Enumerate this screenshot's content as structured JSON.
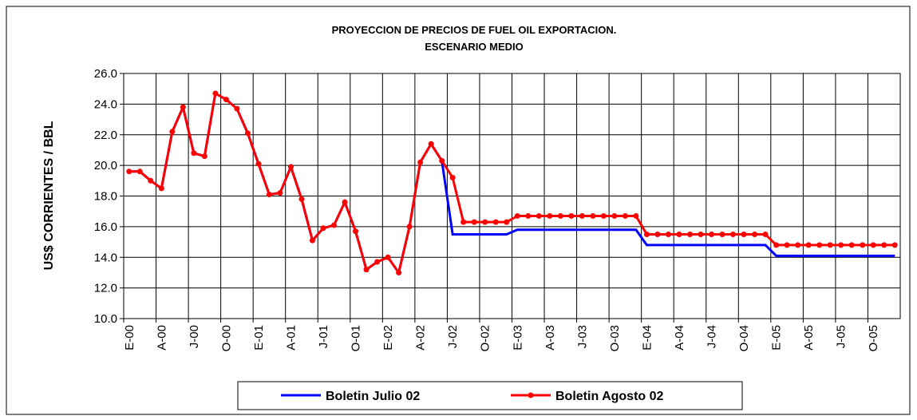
{
  "chart_data": {
    "type": "line",
    "title": "PROYECCION DE PRECIOS DE FUEL OIL EXPORTACION.",
    "subtitle": "ESCENARIO MEDIO",
    "y_label": "US$ CORRIENTES / BBL",
    "categories": [
      "E-00",
      null,
      null,
      "A-00",
      null,
      null,
      "J-00",
      null,
      null,
      "O-00",
      null,
      null,
      "E-01",
      null,
      null,
      "A-01",
      null,
      null,
      "J-01",
      null,
      null,
      "O-01",
      null,
      null,
      "E-02",
      null,
      null,
      "A-02",
      null,
      null,
      "J-02",
      null,
      null,
      "O-02",
      null,
      null,
      "E-03",
      null,
      null,
      "A-03",
      null,
      null,
      "J-03",
      null,
      null,
      "O-03",
      null,
      null,
      "E-04",
      null,
      null,
      "A-04",
      null,
      null,
      "J-04",
      null,
      null,
      "O-04",
      null,
      null,
      "E-05",
      null,
      null,
      "A-05",
      null,
      null,
      "J-05",
      null,
      null,
      "O-05",
      null,
      null
    ],
    "series": [
      {
        "name": "Boletin Julio 02",
        "color": "#0000ff",
        "markers": false,
        "values": [
          19.6,
          19.6,
          19.0,
          18.5,
          22.2,
          23.8,
          20.8,
          20.6,
          24.7,
          24.3,
          23.7,
          22.1,
          20.1,
          18.1,
          18.2,
          19.9,
          17.8,
          15.1,
          15.9,
          16.1,
          17.6,
          15.7,
          13.2,
          13.7,
          14.0,
          13.0,
          16.0,
          20.2,
          21.4,
          20.3,
          15.5,
          15.5,
          15.5,
          15.5,
          15.5,
          15.5,
          15.8,
          15.8,
          15.8,
          15.8,
          15.8,
          15.8,
          15.8,
          15.8,
          15.8,
          15.8,
          15.8,
          15.8,
          14.8,
          14.8,
          14.8,
          14.8,
          14.8,
          14.8,
          14.8,
          14.8,
          14.8,
          14.8,
          14.8,
          14.8,
          14.1,
          14.1,
          14.1,
          14.1,
          14.1,
          14.1,
          14.1,
          14.1,
          14.1,
          14.1,
          14.1,
          14.1
        ]
      },
      {
        "name": "Boletin Agosto 02",
        "color": "#ff0000",
        "markers": true,
        "values": [
          19.6,
          19.6,
          19.0,
          18.5,
          22.2,
          23.8,
          20.8,
          20.6,
          24.7,
          24.3,
          23.7,
          22.1,
          20.1,
          18.1,
          18.2,
          19.9,
          17.8,
          15.1,
          15.9,
          16.1,
          17.6,
          15.7,
          13.2,
          13.7,
          14.0,
          13.0,
          16.0,
          20.2,
          21.4,
          20.3,
          19.2,
          16.3,
          16.3,
          16.3,
          16.3,
          16.3,
          16.7,
          16.7,
          16.7,
          16.7,
          16.7,
          16.7,
          16.7,
          16.7,
          16.7,
          16.7,
          16.7,
          16.7,
          15.5,
          15.5,
          15.5,
          15.5,
          15.5,
          15.5,
          15.5,
          15.5,
          15.5,
          15.5,
          15.5,
          15.5,
          14.8,
          14.8,
          14.8,
          14.8,
          14.8,
          14.8,
          14.8,
          14.8,
          14.8,
          14.8,
          14.8,
          14.8
        ]
      }
    ],
    "ylim": [
      10,
      26
    ],
    "yticks": [
      {
        "value": 10,
        "label": "10.0"
      },
      {
        "value": 12,
        "label": "12.0"
      },
      {
        "value": 14,
        "label": "14.0"
      },
      {
        "value": 16,
        "label": "16.0"
      },
      {
        "value": 18,
        "label": "18.0"
      },
      {
        "value": 20,
        "label": "20.0"
      },
      {
        "value": 22,
        "label": "22.0"
      },
      {
        "value": 24,
        "label": "24.0"
      },
      {
        "value": 26,
        "label": "26.0"
      }
    ],
    "grid": true,
    "legend": "bottom"
  }
}
